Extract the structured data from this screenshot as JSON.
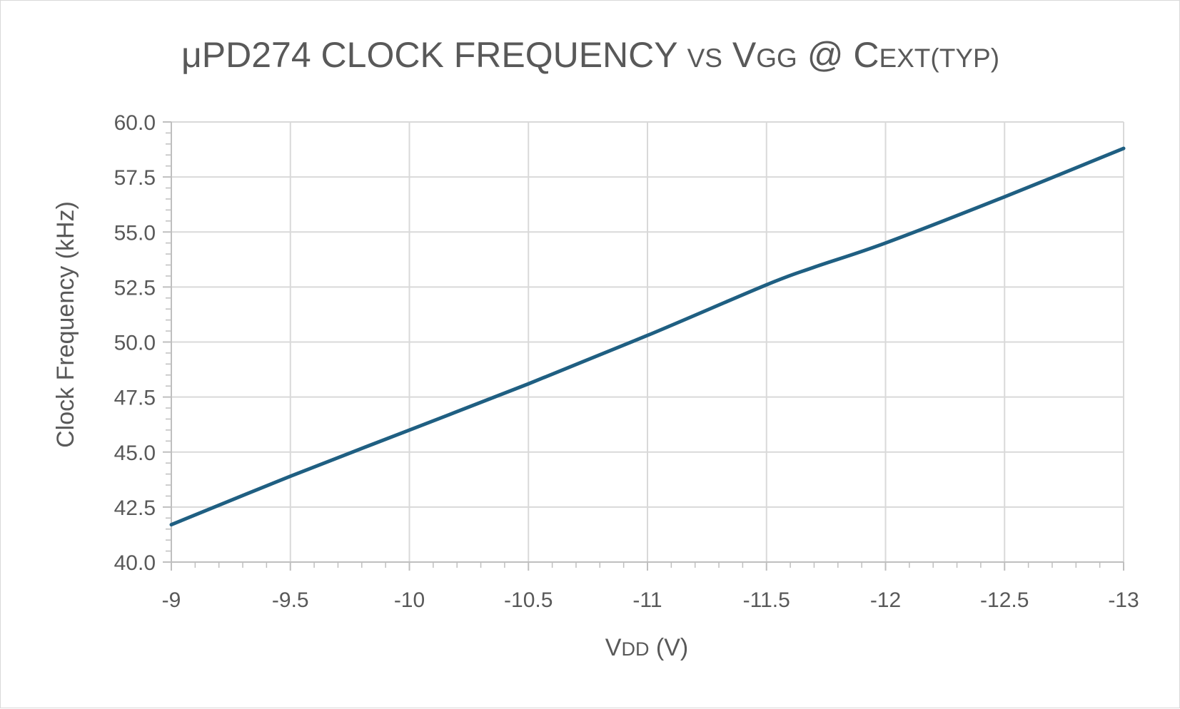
{
  "chart_data": {
    "type": "line",
    "title": {
      "part1": "μPD274 CLOCK FREQUENCY ",
      "part2": "VS",
      "part3": " V",
      "part4": "GG",
      "part5": " @ C",
      "part6": "EXT(TYP)"
    },
    "xlabel": {
      "main": "V",
      "sub": "DD",
      "rest": " (V)"
    },
    "ylabel": "Clock Frequency (kHz)",
    "xlim": [
      -9,
      -13
    ],
    "ylim": [
      40.0,
      60.0
    ],
    "x_ticks": [
      "-9",
      "-9.5",
      "-10",
      "-10.5",
      "-11",
      "-11.5",
      "-12",
      "-12.5",
      "-13"
    ],
    "y_ticks": [
      "40.0",
      "42.5",
      "45.0",
      "47.5",
      "50.0",
      "52.5",
      "55.0",
      "57.5",
      "60.0"
    ],
    "grid": true,
    "series": [
      {
        "x": [
          -9,
          -9.5,
          -10,
          -10.5,
          -11,
          -11.5,
          -11.7,
          -12,
          -12.5,
          -13
        ],
        "y": [
          41.7,
          43.9,
          46.0,
          48.1,
          50.3,
          52.6,
          53.4,
          54.5,
          56.6,
          58.8
        ],
        "color": "#1f5f82"
      }
    ],
    "colors": {
      "series": "#1f5f82",
      "text": "#595959",
      "grid": "#d9d9d9"
    }
  }
}
